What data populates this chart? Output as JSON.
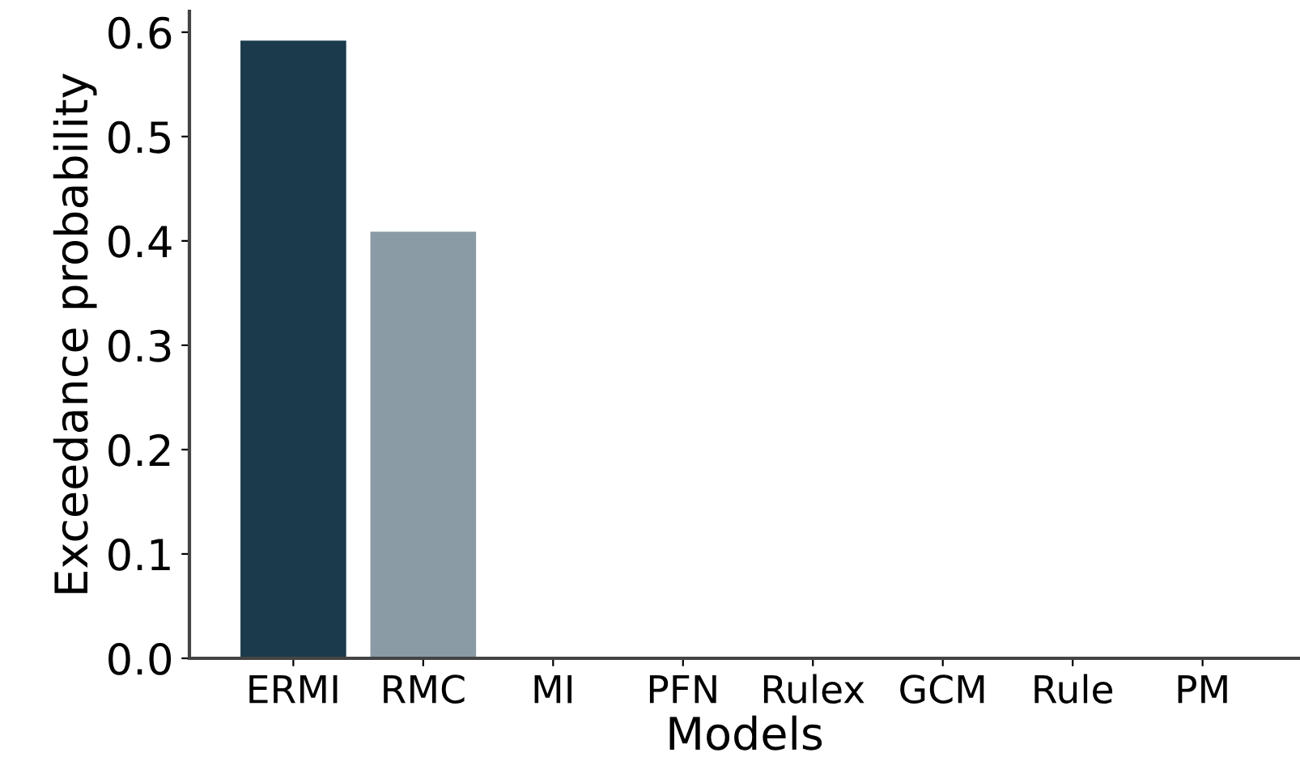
{
  "chart_data": {
    "type": "bar",
    "xlabel": "Models",
    "ylabel": "Exceedance probability",
    "categories": [
      "ERMI",
      "RMC",
      "MI",
      "PFN",
      "Rulex",
      "GCM",
      "Rule",
      "PM"
    ],
    "values": [
      0.591,
      0.408,
      0,
      0,
      0,
      0,
      0,
      0
    ],
    "colors": [
      "#1b3a4b",
      "#8a9ba5",
      "#8a9ba5",
      "#8a9ba5",
      "#8a9ba5",
      "#8a9ba5",
      "#8a9ba5",
      "#8a9ba5"
    ],
    "ylim": [
      0,
      0.62
    ],
    "yticks": [
      {
        "value": 0,
        "label": "0.0"
      },
      0.1,
      0.2,
      0.3,
      0.4,
      0.5,
      0.6
    ],
    "grid": false
  }
}
